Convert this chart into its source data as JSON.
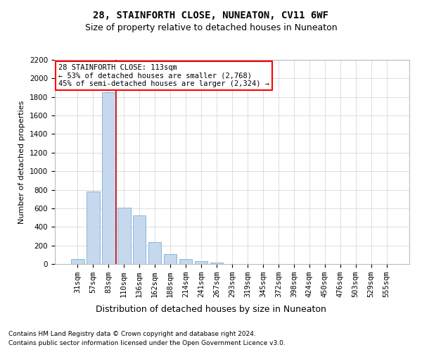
{
  "title": "28, STAINFORTH CLOSE, NUNEATON, CV11 6WF",
  "subtitle": "Size of property relative to detached houses in Nuneaton",
  "xlabel": "Distribution of detached houses by size in Nuneaton",
  "ylabel": "Number of detached properties",
  "footer_line1": "Contains HM Land Registry data © Crown copyright and database right 2024.",
  "footer_line2": "Contains public sector information licensed under the Open Government Licence v3.0.",
  "annotation_line1": "28 STAINFORTH CLOSE: 113sqm",
  "annotation_line2": "← 53% of detached houses are smaller (2,768)",
  "annotation_line3": "45% of semi-detached houses are larger (2,324) →",
  "bar_color": "#c5d8ed",
  "bar_edge_color": "#7bafd4",
  "vline_color": "#cc0000",
  "categories": [
    "31sqm",
    "57sqm",
    "83sqm",
    "110sqm",
    "136sqm",
    "162sqm",
    "188sqm",
    "214sqm",
    "241sqm",
    "267sqm",
    "293sqm",
    "319sqm",
    "345sqm",
    "372sqm",
    "398sqm",
    "424sqm",
    "450sqm",
    "476sqm",
    "503sqm",
    "529sqm",
    "555sqm"
  ],
  "values": [
    50,
    780,
    1850,
    610,
    520,
    235,
    105,
    50,
    28,
    12,
    0,
    0,
    0,
    0,
    0,
    0,
    0,
    0,
    0,
    0,
    0
  ],
  "ylim": [
    0,
    2200
  ],
  "yticks": [
    0,
    200,
    400,
    600,
    800,
    1000,
    1200,
    1400,
    1600,
    1800,
    2000,
    2200
  ],
  "vline_x_index": 2.5,
  "background_color": "#ffffff",
  "grid_color": "#d0d0d0",
  "title_fontsize": 10,
  "subtitle_fontsize": 9,
  "ylabel_fontsize": 8,
  "tick_fontsize": 7.5,
  "annotation_fontsize": 7.5,
  "footer_fontsize": 6.5
}
